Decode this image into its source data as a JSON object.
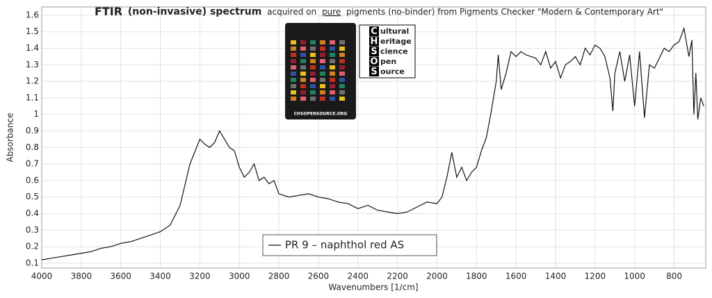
{
  "chart_data": {
    "type": "line",
    "title": [
      "FTIR",
      "(non-invasive) spectrum",
      "acquired on",
      "pure",
      "pigments (no-binder) from Pigments Checker \"Modern & Contemporary Art\""
    ],
    "x_label": "Wavenumbers [1/cm]",
    "y_label": "Absorbance",
    "xlim": [
      4000,
      640
    ],
    "ylim": [
      0.07,
      1.65
    ],
    "xticks": [
      4000,
      3800,
      3600,
      3400,
      3200,
      3000,
      2800,
      2600,
      2400,
      2200,
      2000,
      1800,
      1600,
      1400,
      1200,
      1000,
      800
    ],
    "yticks": [
      0.1,
      0.2,
      0.3,
      0.4,
      0.5,
      0.6,
      0.7,
      0.8,
      0.9,
      1,
      1.1,
      1.2,
      1.3,
      1.4,
      1.5,
      1.6
    ],
    "grid": true,
    "x": [
      4000,
      3950,
      3900,
      3850,
      3800,
      3750,
      3700,
      3650,
      3600,
      3550,
      3500,
      3450,
      3400,
      3350,
      3300,
      3250,
      3200,
      3175,
      3150,
      3125,
      3100,
      3075,
      3050,
      3025,
      3000,
      2975,
      2950,
      2925,
      2900,
      2875,
      2850,
      2825,
      2800,
      2750,
      2700,
      2650,
      2600,
      2550,
      2500,
      2450,
      2400,
      2350,
      2300,
      2250,
      2200,
      2150,
      2100,
      2050,
      2000,
      1975,
      1950,
      1925,
      1900,
      1875,
      1850,
      1825,
      1800,
      1775,
      1750,
      1725,
      1700,
      1690,
      1675,
      1650,
      1625,
      1600,
      1575,
      1550,
      1500,
      1475,
      1450,
      1425,
      1400,
      1375,
      1350,
      1325,
      1300,
      1275,
      1250,
      1225,
      1200,
      1175,
      1150,
      1125,
      1110,
      1100,
      1075,
      1050,
      1025,
      1000,
      975,
      950,
      925,
      900,
      875,
      850,
      825,
      800,
      775,
      750,
      725,
      710,
      700,
      690,
      680,
      665,
      650
    ],
    "series": [
      {
        "name": "PR 9 – naphthol red AS",
        "color": "#111111",
        "values": [
          0.12,
          0.13,
          0.14,
          0.15,
          0.16,
          0.17,
          0.19,
          0.2,
          0.22,
          0.23,
          0.25,
          0.27,
          0.29,
          0.33,
          0.45,
          0.7,
          0.85,
          0.82,
          0.8,
          0.83,
          0.9,
          0.85,
          0.8,
          0.78,
          0.68,
          0.62,
          0.65,
          0.7,
          0.6,
          0.62,
          0.58,
          0.6,
          0.52,
          0.5,
          0.51,
          0.52,
          0.5,
          0.49,
          0.47,
          0.46,
          0.43,
          0.45,
          0.42,
          0.41,
          0.4,
          0.41,
          0.44,
          0.47,
          0.46,
          0.5,
          0.62,
          0.77,
          0.62,
          0.68,
          0.6,
          0.65,
          0.68,
          0.78,
          0.86,
          1.02,
          1.2,
          1.36,
          1.15,
          1.25,
          1.38,
          1.35,
          1.38,
          1.36,
          1.34,
          1.3,
          1.38,
          1.28,
          1.32,
          1.22,
          1.3,
          1.32,
          1.35,
          1.3,
          1.4,
          1.36,
          1.42,
          1.4,
          1.35,
          1.22,
          1.02,
          1.25,
          1.38,
          1.2,
          1.36,
          1.05,
          1.38,
          0.98,
          1.3,
          1.28,
          1.34,
          1.4,
          1.38,
          1.42,
          1.44,
          1.52,
          1.35,
          1.45,
          1.0,
          1.25,
          0.97,
          1.1,
          1.05
        ]
      }
    ]
  },
  "logo": {
    "letters": [
      "C",
      "H",
      "S",
      "O",
      "S"
    ],
    "words": [
      "ultural",
      "eritage",
      "cience",
      "pen",
      "ource"
    ]
  },
  "card": {
    "footer": "CHSOPENSOURCE.ORG"
  }
}
